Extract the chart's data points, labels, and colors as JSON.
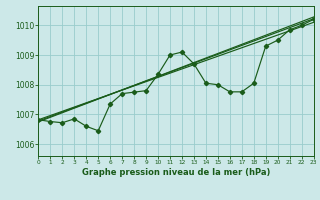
{
  "title": "Graphe pression niveau de la mer (hPa)",
  "bg_color": "#cce8e8",
  "grid_color": "#99cccc",
  "line_color": "#1a5c1a",
  "xlim": [
    0,
    23
  ],
  "ylim": [
    1005.6,
    1010.65
  ],
  "xtick_pos": [
    0,
    1,
    2,
    3,
    4,
    5,
    6,
    7,
    8,
    9,
    10,
    11,
    12,
    13,
    14,
    15,
    16,
    17,
    18,
    19,
    20,
    21,
    22,
    23
  ],
  "xtick_labels": [
    "0",
    "1",
    "2",
    "3",
    "4",
    "5",
    "6",
    "7",
    "8",
    "9",
    "10",
    "11",
    "12",
    "13",
    "14",
    "15",
    "16",
    "17",
    "18",
    "19",
    "20",
    "21",
    "22",
    "23"
  ],
  "ytick_values": [
    1006,
    1007,
    1008,
    1009,
    1010
  ],
  "zigzag_x": [
    0,
    1,
    2,
    3,
    4,
    5,
    6,
    7,
    8,
    9,
    10,
    11,
    12,
    13,
    14,
    15,
    16,
    17,
    18,
    19,
    20,
    21,
    22,
    23
  ],
  "zigzag_y": [
    1006.82,
    1006.76,
    1006.72,
    1006.85,
    1006.6,
    1006.45,
    1007.35,
    1007.7,
    1007.75,
    1007.8,
    1008.35,
    1009.0,
    1009.1,
    1008.7,
    1008.05,
    1008.0,
    1007.76,
    1007.76,
    1008.05,
    1009.3,
    1009.5,
    1009.85,
    1010.0,
    1010.2
  ],
  "trend1_x": [
    0,
    23
  ],
  "trend1_y": [
    1006.82,
    1010.1
  ],
  "trend2_x": [
    0,
    23
  ],
  "trend2_y": [
    1006.78,
    1010.22
  ],
  "trend3_x": [
    0,
    23
  ],
  "trend3_y": [
    1006.75,
    1010.28
  ]
}
